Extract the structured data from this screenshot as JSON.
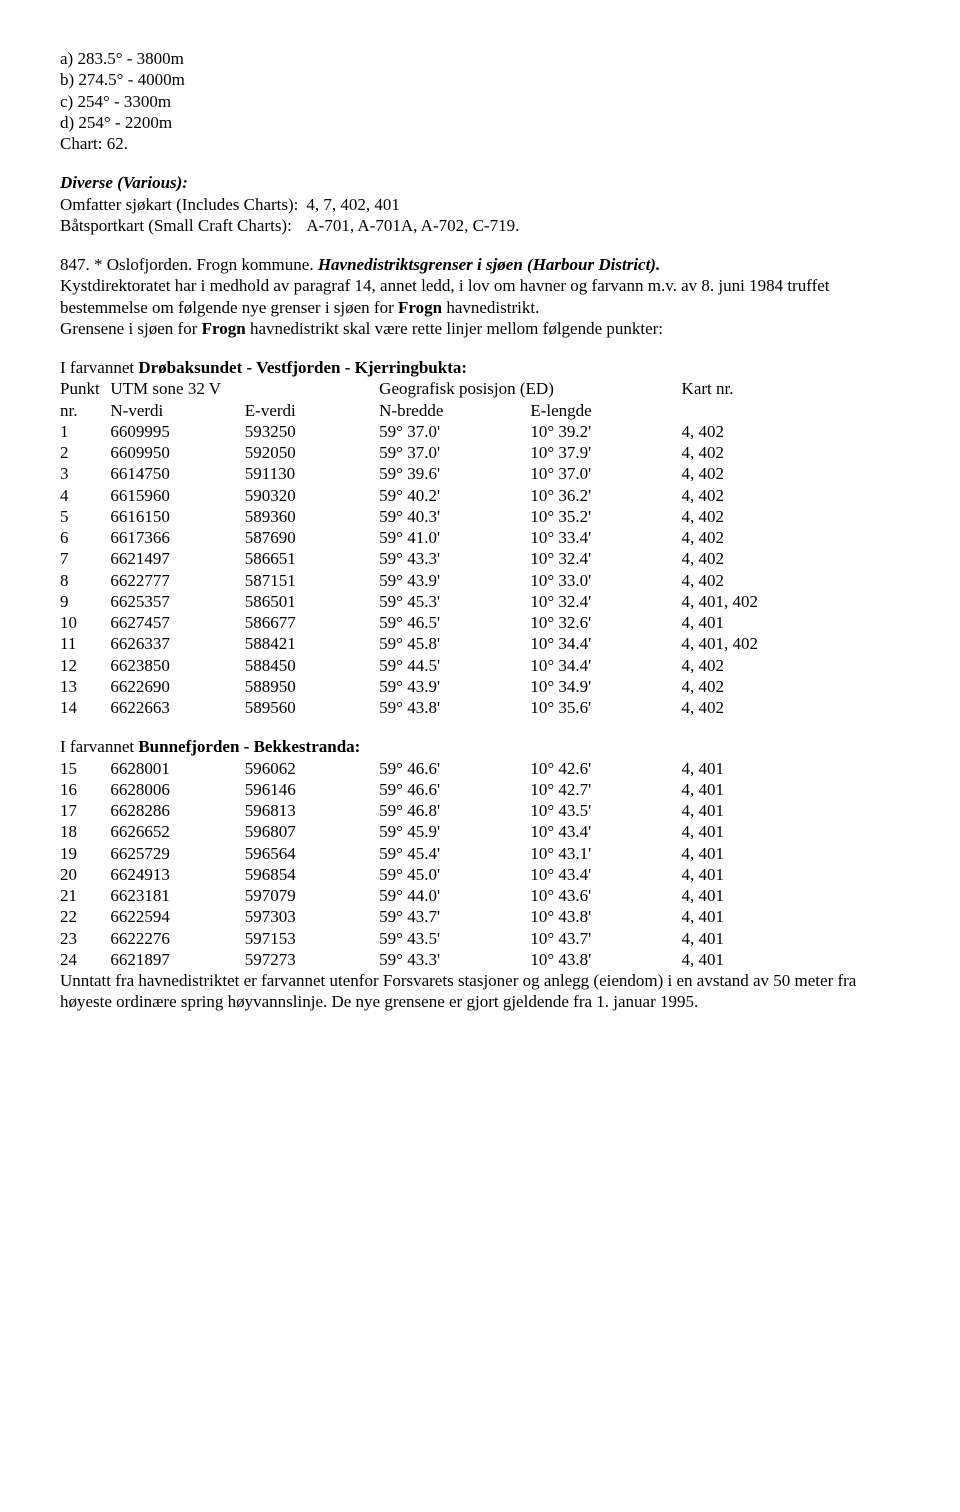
{
  "options": {
    "a": "a) 283.5° - 3800m",
    "b": "b) 274.5° - 4000m",
    "c": "c) 254° - 3300m",
    "d": "d) 254° - 2200m",
    "chart": "Chart: 62."
  },
  "diverse": {
    "heading": "Diverse (Various):",
    "row1_label": "Omfatter sjøkart (Includes Charts):",
    "row1_value": "4, 7, 402, 401",
    "row2_label": "Båtsportkart (Small Craft Charts):",
    "row2_value": "A-701, A-701A, A-702, C-719."
  },
  "p847": {
    "lead": "847. * Oslofjorden. Frogn kommune. ",
    "bold_it": "Havnedistriktsgrenser i sjøen (Harbour District).",
    "body1": "Kystdirektoratet har i medhold av paragraf 14, annet ledd, i lov om havner og farvann m.v. av 8. juni 1984 truffet bestemmelse om følgende nye grenser i sjøen for ",
    "frogn1": "Frogn",
    "body1_tail": " havnedistrikt.",
    "body2_a": "Grensene i sjøen for ",
    "frogn2": "Frogn",
    "body2_b": " havnedistrikt skal være rette linjer mellom følgende punkter:"
  },
  "tbl1": {
    "intro_a": "I farvannet ",
    "intro_b": "Drøbaksundet - Vestfjorden - Kjerringbukta:",
    "h_punkt": "Punkt nr.",
    "h_utm": "UTM sone 32 V",
    "h_geo": "Geografisk posisjon (ED)",
    "h_kart": "Kart nr.",
    "h_nverdi": "N-verdi",
    "h_everdi": "E-verdi",
    "h_nbredde": "N-bredde",
    "h_elengde": "E-lengde",
    "rows": [
      [
        "1",
        "6609995",
        "593250",
        "59° 37.0'",
        "10° 39.2'",
        "4, 402"
      ],
      [
        "2",
        "6609950",
        "592050",
        "59° 37.0'",
        "10° 37.9'",
        "4, 402"
      ],
      [
        "3",
        "6614750",
        "591130",
        "59° 39.6'",
        "10° 37.0'",
        "4, 402"
      ],
      [
        "4",
        "6615960",
        "590320",
        "59° 40.2'",
        "10° 36.2'",
        "4, 402"
      ],
      [
        "5",
        "6616150",
        "589360",
        "59° 40.3'",
        "10° 35.2'",
        "4, 402"
      ],
      [
        "6",
        "6617366",
        "587690",
        "59° 41.0'",
        "10° 33.4'",
        "4, 402"
      ],
      [
        "7",
        "6621497",
        "586651",
        "59° 43.3'",
        "10° 32.4'",
        "4, 402"
      ],
      [
        "8",
        "6622777",
        "587151",
        "59° 43.9'",
        "10° 33.0'",
        "4, 402"
      ],
      [
        "9",
        "6625357",
        "586501",
        "59° 45.3'",
        "10° 32.4'",
        "4, 401, 402"
      ],
      [
        "10",
        "6627457",
        "586677",
        "59° 46.5'",
        "10° 32.6'",
        "4, 401"
      ],
      [
        "11",
        "6626337",
        "588421",
        "59° 45.8'",
        "10° 34.4'",
        "4, 401, 402"
      ],
      [
        "12",
        "6623850",
        "588450",
        "59° 44.5'",
        "10° 34.4'",
        "4, 402"
      ],
      [
        "13",
        "6622690",
        "588950",
        "59° 43.9'",
        "10° 34.9'",
        "4, 402"
      ],
      [
        "14",
        "6622663",
        "589560",
        "59° 43.8'",
        "10° 35.6'",
        "4, 402"
      ]
    ]
  },
  "tbl2": {
    "intro_a": "I farvannet ",
    "intro_b": "Bunnefjorden - Bekkestranda:",
    "rows": [
      [
        "15",
        "6628001",
        "596062",
        "59° 46.6'",
        "10° 42.6'",
        "4, 401"
      ],
      [
        "16",
        "6628006",
        "596146",
        "59° 46.6'",
        "10° 42.7'",
        "4, 401"
      ],
      [
        "17",
        "6628286",
        "596813",
        "59° 46.8'",
        "10° 43.5'",
        "4, 401"
      ],
      [
        "18",
        "6626652",
        "596807",
        "59° 45.9'",
        "10° 43.4'",
        "4, 401"
      ],
      [
        "19",
        "6625729",
        "596564",
        "59° 45.4'",
        "10° 43.1'",
        "4, 401"
      ],
      [
        "20",
        "6624913",
        "596854",
        "59° 45.0'",
        "10° 43.4'",
        "4, 401"
      ],
      [
        "21",
        "6623181",
        "597079",
        "59° 44.0'",
        "10° 43.6'",
        "4, 401"
      ],
      [
        "22",
        "6622594",
        "597303",
        "59° 43.7'",
        "10° 43.8'",
        "4, 401"
      ],
      [
        "23",
        "6622276",
        "597153",
        "59° 43.5'",
        "10° 43.7'",
        "4, 401"
      ],
      [
        "24",
        "6621897",
        "597273",
        "59° 43.3'",
        "10° 43.8'",
        "4, 401"
      ]
    ]
  },
  "footer": "Unntatt fra havnedistriktet er farvannet utenfor Forsvarets stasjoner og anlegg (eiendom) i en avstand av 50 meter fra høyeste ordinære spring høyvannslinje.  De nye grensene er gjort gjeldende fra 1. januar 1995."
}
